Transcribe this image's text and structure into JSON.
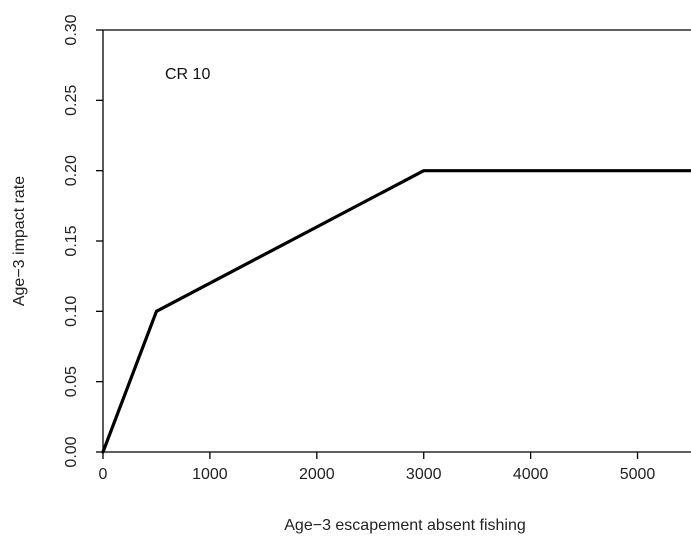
{
  "chart_data": {
    "type": "line",
    "title": "",
    "xlabel": "Age−3 escapement absent fishing",
    "ylabel": "Age−3 impact rate",
    "xlim": [
      0,
      5500
    ],
    "ylim": [
      0,
      0.3
    ],
    "x_ticks": [
      0,
      1000,
      2000,
      3000,
      4000,
      5000
    ],
    "x_tick_labels": [
      "0",
      "1000",
      "2000",
      "3000",
      "4000",
      "5000"
    ],
    "y_ticks": [
      0,
      0.05,
      0.1,
      0.15,
      0.2,
      0.25,
      0.3
    ],
    "y_tick_labels": [
      "0.00",
      "0.05",
      "0.10",
      "0.15",
      "0.20",
      "0.25",
      "0.30"
    ],
    "annotation": "CR 10",
    "grid": false,
    "box": "bottom-left-top",
    "series": [
      {
        "color": "#000000",
        "points": [
          {
            "x": 0,
            "y": 0.0
          },
          {
            "x": 500,
            "y": 0.1
          },
          {
            "x": 3000,
            "y": 0.2
          },
          {
            "x": 5500,
            "y": 0.2
          }
        ]
      }
    ]
  }
}
